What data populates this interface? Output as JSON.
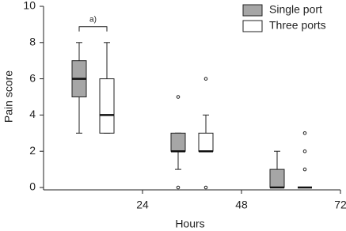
{
  "chart_data": {
    "type": "box",
    "x_label": "Hours",
    "y_label": "Pain score",
    "annotation": "a)",
    "x": [
      12,
      36,
      60
    ],
    "xlim": [
      0,
      72
    ],
    "xticks": [
      24,
      48,
      72
    ],
    "ylim": [
      0,
      10
    ],
    "yticks": [
      0,
      2,
      4,
      6,
      8,
      10
    ],
    "legend": "top-right",
    "series": [
      {
        "name": "Single port",
        "color": "#a6a6a6",
        "min": [
          3,
          1,
          0
        ],
        "q1": [
          5,
          2,
          0
        ],
        "median": [
          6,
          2,
          0
        ],
        "q3": [
          7,
          3,
          1
        ],
        "max": [
          8,
          3,
          2
        ],
        "outliers": [
          [],
          [
            5,
            0
          ],
          []
        ]
      },
      {
        "name": "Three ports",
        "color": "#ffffff",
        "min": [
          3,
          2,
          0
        ],
        "q1": [
          3,
          2,
          0
        ],
        "median": [
          4,
          2,
          0
        ],
        "q3": [
          6,
          3,
          0
        ],
        "max": [
          8,
          4,
          0
        ],
        "outliers": [
          [],
          [
            6,
            0
          ],
          [
            1,
            2,
            3
          ]
        ]
      }
    ]
  }
}
